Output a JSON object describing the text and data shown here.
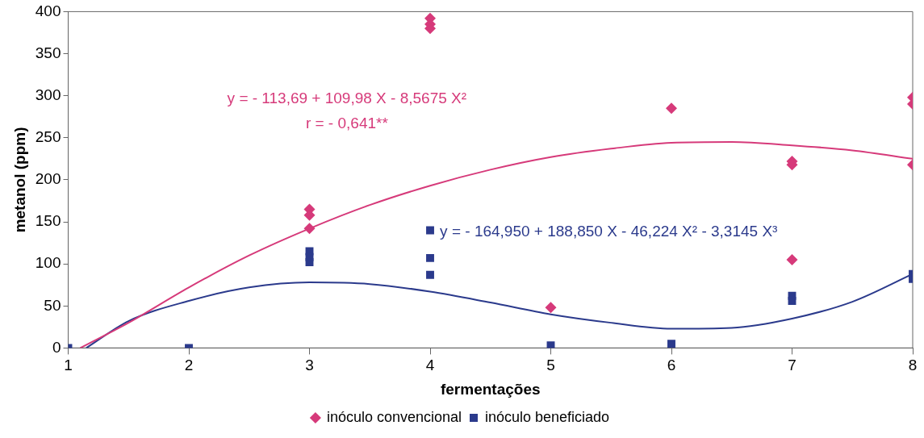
{
  "chart_data": {
    "type": "scatter",
    "xlabel": "fermentações",
    "ylabel": "metanol (ppm)",
    "xlim": [
      1,
      8
    ],
    "xticks": [
      1,
      2,
      3,
      4,
      5,
      6,
      7,
      8
    ],
    "ylim": [
      0,
      400
    ],
    "yticks": [
      0,
      50,
      100,
      150,
      200,
      250,
      300,
      350,
      400
    ],
    "grid": false,
    "legend": "bottom",
    "series": [
      {
        "name": "inóculo convencional",
        "color": "#d63a7a",
        "marker": "diamond",
        "x": [
          3,
          3,
          3,
          4,
          4,
          4,
          5,
          6,
          7,
          7,
          7,
          8,
          8,
          8
        ],
        "values": [
          165,
          158,
          142,
          392,
          385,
          380,
          48,
          285,
          222,
          218,
          105,
          298,
          290,
          218
        ]
      },
      {
        "name": "inóculo beneficiado",
        "color": "#2b3a8c",
        "marker": "square",
        "x": [
          1,
          2,
          3,
          3,
          3,
          4,
          4,
          4,
          5,
          6,
          7,
          7,
          8,
          8
        ],
        "values": [
          0,
          0,
          115,
          108,
          102,
          140,
          107,
          87,
          3,
          5,
          62,
          56,
          88,
          82
        ]
      },
      {
        "type": "line",
        "color": "#d63a7a",
        "marker": "none",
        "x": [
          1.1,
          1.5,
          2,
          2.5,
          3,
          3.5,
          4,
          4.5,
          5,
          5.5,
          6,
          6.5,
          7,
          7.5,
          8
        ],
        "values": [
          0,
          30,
          72,
          110,
          142,
          170,
          193,
          212,
          227,
          237,
          244,
          245,
          241,
          235,
          225
        ]
      },
      {
        "type": "line",
        "color": "#2b3a8c",
        "marker": "none",
        "x": [
          1.15,
          1.5,
          2,
          2.5,
          3,
          3.5,
          4,
          4.5,
          5,
          5.5,
          6,
          6.5,
          7,
          7.5,
          8
        ],
        "values": [
          0,
          32,
          56,
          72,
          78,
          76,
          67,
          54,
          40,
          30,
          23,
          24,
          35,
          55,
          88
        ]
      }
    ],
    "annotations": [
      "y = - 113,69 + 109,98 X - 8,5675 X²",
      "r = - 0,641**",
      "y = - 164,950 + 188,850 X - 46,224 X² - 3,3145 X³"
    ]
  }
}
